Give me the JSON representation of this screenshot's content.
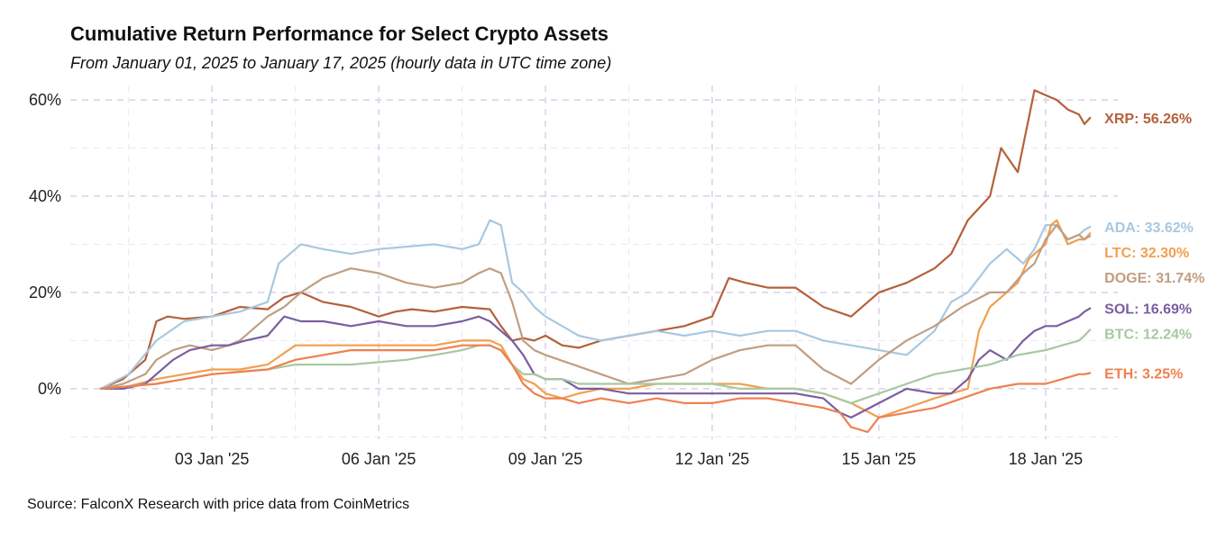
{
  "title": "Cumulative Return Performance for Select Crypto Assets",
  "subtitle": "From January 01, 2025 to January 17, 2025 (hourly data in UTC time zone)",
  "source": "Source: FalconX Research with price data from CoinMetrics",
  "chart_data": {
    "type": "line",
    "title": "Cumulative Return Performance for Select Crypto Assets",
    "xlabel": "",
    "ylabel": "",
    "x_unit": "days since 01 Jan 2025 00:00 UTC",
    "xlim": [
      -0.55,
      18.3
    ],
    "ylim": [
      -10.5,
      63
    ],
    "y_ticks": [
      0,
      20,
      40,
      60
    ],
    "y_tick_labels": [
      "0%",
      "20%",
      "40%",
      "60%"
    ],
    "x_ticks": [
      2,
      5,
      8,
      11,
      14,
      17
    ],
    "x_tick_labels": [
      "03 Jan '25",
      "06 Jan '25",
      "09 Jan '25",
      "12 Jan '25",
      "15 Jan '25",
      "18 Jan '25"
    ],
    "grid": true,
    "series": [
      {
        "name": "XRP",
        "color": "#b5603a",
        "end_label": "XRP: 56.26%",
        "end_value": 56.26,
        "x": [
          0,
          0.4,
          0.8,
          1.0,
          1.2,
          1.5,
          2.0,
          2.5,
          3.0,
          3.3,
          3.6,
          4.0,
          4.5,
          5.0,
          5.3,
          5.6,
          6.0,
          6.5,
          7.0,
          7.2,
          7.4,
          7.6,
          7.8,
          8.0,
          8.3,
          8.6,
          9.0,
          9.5,
          10.0,
          10.5,
          11.0,
          11.3,
          11.6,
          12.0,
          12.5,
          13.0,
          13.5,
          14.0,
          14.5,
          15.0,
          15.3,
          15.6,
          16.0,
          16.2,
          16.5,
          16.8,
          17.0,
          17.2,
          17.4,
          17.6,
          17.7,
          17.8
        ],
        "y": [
          0,
          2,
          6,
          14,
          15,
          14.5,
          15,
          17,
          16.5,
          19,
          20,
          18,
          17,
          15,
          16,
          16.5,
          16,
          17,
          16.5,
          13,
          10,
          10.5,
          10,
          11,
          9,
          8.5,
          10,
          11,
          12,
          13,
          15,
          23,
          22,
          21,
          21,
          17,
          15,
          20,
          22,
          25,
          28,
          35,
          40,
          50,
          45,
          62,
          61,
          60,
          58,
          57,
          55,
          56.26
        ]
      },
      {
        "name": "ADA",
        "color": "#a8c8e0",
        "end_label": "ADA: 33.62%",
        "end_value": 33.62,
        "x": [
          0,
          0.5,
          1.0,
          1.5,
          2.0,
          2.5,
          3.0,
          3.2,
          3.6,
          4.0,
          4.5,
          5.0,
          5.5,
          6.0,
          6.5,
          6.8,
          7.0,
          7.2,
          7.4,
          7.6,
          7.8,
          8.0,
          8.3,
          8.6,
          9.0,
          9.5,
          10.0,
          10.5,
          11.0,
          11.5,
          12.0,
          12.5,
          13.0,
          13.5,
          14.0,
          14.5,
          15.0,
          15.3,
          15.6,
          16.0,
          16.3,
          16.6,
          16.8,
          17.0,
          17.2,
          17.4,
          17.6,
          17.7,
          17.8
        ],
        "y": [
          0,
          3,
          10,
          14,
          15,
          16,
          18,
          26,
          30,
          29,
          28,
          29,
          29.5,
          30,
          29,
          30,
          35,
          34,
          22,
          20,
          17,
          15,
          13,
          11,
          10,
          11,
          12,
          11,
          12,
          11,
          12,
          12,
          10,
          9,
          8,
          7,
          12,
          18,
          20,
          26,
          29,
          26,
          29,
          34,
          34,
          31,
          32,
          33,
          33.62
        ]
      },
      {
        "name": "LTC",
        "color": "#f0a050",
        "end_label": "LTC: 32.30%",
        "end_value": 32.3,
        "x": [
          0,
          0.5,
          1.0,
          1.5,
          2.0,
          2.5,
          3.0,
          3.5,
          4.0,
          4.5,
          5.0,
          5.5,
          6.0,
          6.5,
          6.8,
          7.0,
          7.2,
          7.4,
          7.6,
          7.8,
          8.0,
          8.3,
          8.6,
          9.0,
          9.5,
          10.0,
          10.5,
          11.0,
          11.5,
          12.0,
          12.5,
          13.0,
          13.5,
          14.0,
          14.5,
          15.0,
          15.3,
          15.6,
          15.8,
          16.0,
          16.2,
          16.5,
          16.7,
          17.0,
          17.1,
          17.2,
          17.4,
          17.6,
          17.7,
          17.8
        ],
        "y": [
          0,
          0.5,
          2,
          3,
          4,
          4,
          5,
          9,
          9,
          9,
          9,
          9,
          9,
          10,
          10,
          10,
          9,
          5,
          2,
          1,
          -1,
          -2,
          -1,
          0,
          0,
          1,
          1,
          1,
          1,
          0,
          0,
          -1,
          -3,
          -6,
          -4,
          -2,
          -1,
          0,
          12,
          17,
          19,
          22,
          27,
          30,
          34,
          35,
          30,
          31,
          31,
          32.3
        ]
      },
      {
        "name": "DOGE",
        "color": "#c09e82",
        "end_label": "DOGE: 31.74%",
        "end_value": 31.74,
        "x": [
          0,
          0.4,
          0.8,
          1.0,
          1.3,
          1.6,
          2.0,
          2.3,
          2.5,
          2.8,
          3.0,
          3.3,
          3.6,
          4.0,
          4.5,
          5.0,
          5.5,
          6.0,
          6.5,
          6.8,
          7.0,
          7.2,
          7.4,
          7.6,
          7.8,
          8.0,
          8.5,
          9.0,
          9.5,
          10.0,
          10.5,
          11.0,
          11.5,
          12.0,
          12.5,
          13.0,
          13.5,
          14.0,
          14.5,
          15.0,
          15.5,
          16.0,
          16.3,
          16.6,
          16.8,
          17.0,
          17.2,
          17.4,
          17.6,
          17.7,
          17.8
        ],
        "y": [
          0,
          1,
          3,
          6,
          8,
          9,
          8,
          9,
          10,
          13,
          15,
          17,
          20,
          23,
          25,
          24,
          22,
          21,
          22,
          24,
          25,
          24,
          18,
          10,
          8,
          7,
          5,
          3,
          1,
          2,
          3,
          6,
          8,
          9,
          9,
          4,
          1,
          6,
          10,
          13,
          17,
          20,
          20,
          24,
          26,
          31,
          34,
          31,
          32,
          31,
          31.74
        ]
      },
      {
        "name": "SOL",
        "color": "#7a5ea0",
        "end_label": "SOL: 16.69%",
        "end_value": 16.69,
        "x": [
          0,
          0.4,
          0.8,
          1.0,
          1.3,
          1.6,
          2.0,
          2.3,
          2.6,
          3.0,
          3.3,
          3.6,
          4.0,
          4.5,
          5.0,
          5.5,
          6.0,
          6.5,
          6.8,
          7.0,
          7.2,
          7.4,
          7.6,
          7.8,
          8.0,
          8.3,
          8.6,
          9.0,
          9.5,
          10.0,
          10.5,
          11.0,
          11.5,
          12.0,
          12.5,
          13.0,
          13.3,
          13.5,
          14.0,
          14.5,
          15.0,
          15.3,
          15.6,
          15.8,
          16.0,
          16.3,
          16.6,
          16.8,
          17.0,
          17.2,
          17.4,
          17.6,
          17.7,
          17.8
        ],
        "y": [
          0,
          0,
          1,
          3,
          6,
          8,
          9,
          9,
          10,
          11,
          15,
          14,
          14,
          13,
          14,
          13,
          13,
          14,
          15,
          14,
          12,
          10,
          7,
          3,
          2,
          2,
          0,
          0,
          -1,
          -1,
          -1,
          -1,
          -1,
          -1,
          -1,
          -2,
          -5,
          -6,
          -3,
          0,
          -1,
          -1,
          2,
          6,
          8,
          6,
          10,
          12,
          13,
          13,
          14,
          15,
          16,
          16.69
        ]
      },
      {
        "name": "BTC",
        "color": "#a8c8a0",
        "end_label": "BTC: 12.24%",
        "end_value": 12.24,
        "x": [
          0,
          0.5,
          1.0,
          1.5,
          2.0,
          2.5,
          3.0,
          3.5,
          4.0,
          4.5,
          5.0,
          5.5,
          6.0,
          6.5,
          6.8,
          7.0,
          7.2,
          7.4,
          7.6,
          7.8,
          8.0,
          8.3,
          8.6,
          9.0,
          9.5,
          10.0,
          10.5,
          11.0,
          11.5,
          12.0,
          12.5,
          13.0,
          13.5,
          14.0,
          14.5,
          15.0,
          15.5,
          16.0,
          16.5,
          17.0,
          17.3,
          17.6,
          17.7,
          17.8
        ],
        "y": [
          0,
          0.5,
          1,
          2,
          3,
          3.5,
          4,
          5,
          5,
          5,
          5.5,
          6,
          7,
          8,
          9,
          9,
          8,
          5,
          3,
          3,
          2,
          2,
          1,
          1,
          1,
          1,
          1,
          1,
          0,
          0,
          0,
          -1,
          -3,
          -1,
          1,
          3,
          4,
          5,
          7,
          8,
          9,
          10,
          11,
          12.24
        ]
      },
      {
        "name": "ETH",
        "color": "#ee8050",
        "end_label": "ETH: 3.25%",
        "end_value": 3.25,
        "x": [
          0,
          0.5,
          1.0,
          1.5,
          2.0,
          2.5,
          3.0,
          3.5,
          4.0,
          4.5,
          5.0,
          5.5,
          6.0,
          6.5,
          6.8,
          7.0,
          7.2,
          7.4,
          7.6,
          7.8,
          8.0,
          8.3,
          8.6,
          9.0,
          9.5,
          10.0,
          10.5,
          11.0,
          11.5,
          12.0,
          12.5,
          13.0,
          13.3,
          13.5,
          13.8,
          14.0,
          14.5,
          15.0,
          15.5,
          16.0,
          16.5,
          17.0,
          17.3,
          17.6,
          17.7,
          17.8
        ],
        "y": [
          0,
          0.5,
          1,
          2,
          3,
          3.5,
          4,
          6,
          7,
          8,
          8,
          8,
          8,
          9,
          9,
          9,
          8,
          5,
          1,
          -1,
          -2,
          -2,
          -3,
          -2,
          -3,
          -2,
          -3,
          -3,
          -2,
          -2,
          -3,
          -4,
          -5,
          -8,
          -9,
          -6,
          -5,
          -4,
          -2,
          0,
          1,
          1,
          2,
          3,
          3,
          3.25
        ]
      }
    ]
  }
}
